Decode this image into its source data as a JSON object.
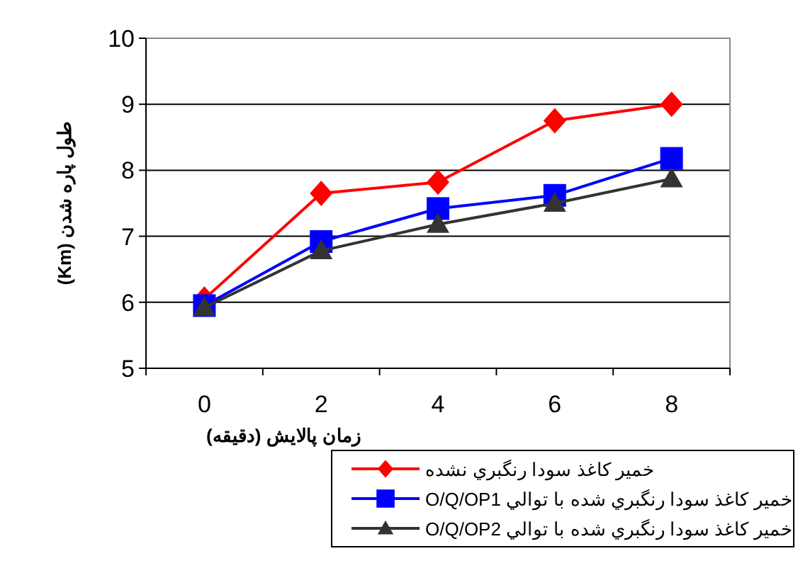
{
  "chart_data": {
    "type": "line",
    "xlabel": "زمان پالايش (دقيقه)",
    "ylabel": "طول پاره شدن (Km)",
    "categories": [
      "0",
      "2",
      "4",
      "6",
      "8"
    ],
    "ylim": [
      5,
      10
    ],
    "yticks": [
      5,
      6,
      7,
      8,
      9,
      10
    ],
    "grid": "y",
    "legend": "bottom right",
    "series": [
      {
        "name": "خمير كاغذ سودا رنگبري نشده",
        "color": "#ff0000",
        "marker": "diamond",
        "values": [
          6.05,
          7.65,
          7.82,
          8.75,
          9.0
        ]
      },
      {
        "name": "خمير كاغذ سودا رنگبري شده با توالي O/Q/OP1",
        "color": "#0000ff",
        "marker": "square",
        "values": [
          5.95,
          6.92,
          7.42,
          7.62,
          8.18
        ]
      },
      {
        "name": "خمير كاغذ سودا رنگبري شده با توالي O/Q/OP2",
        "color": "#333333",
        "marker": "triangle",
        "values": [
          5.92,
          6.78,
          7.18,
          7.5,
          7.87
        ]
      }
    ]
  }
}
